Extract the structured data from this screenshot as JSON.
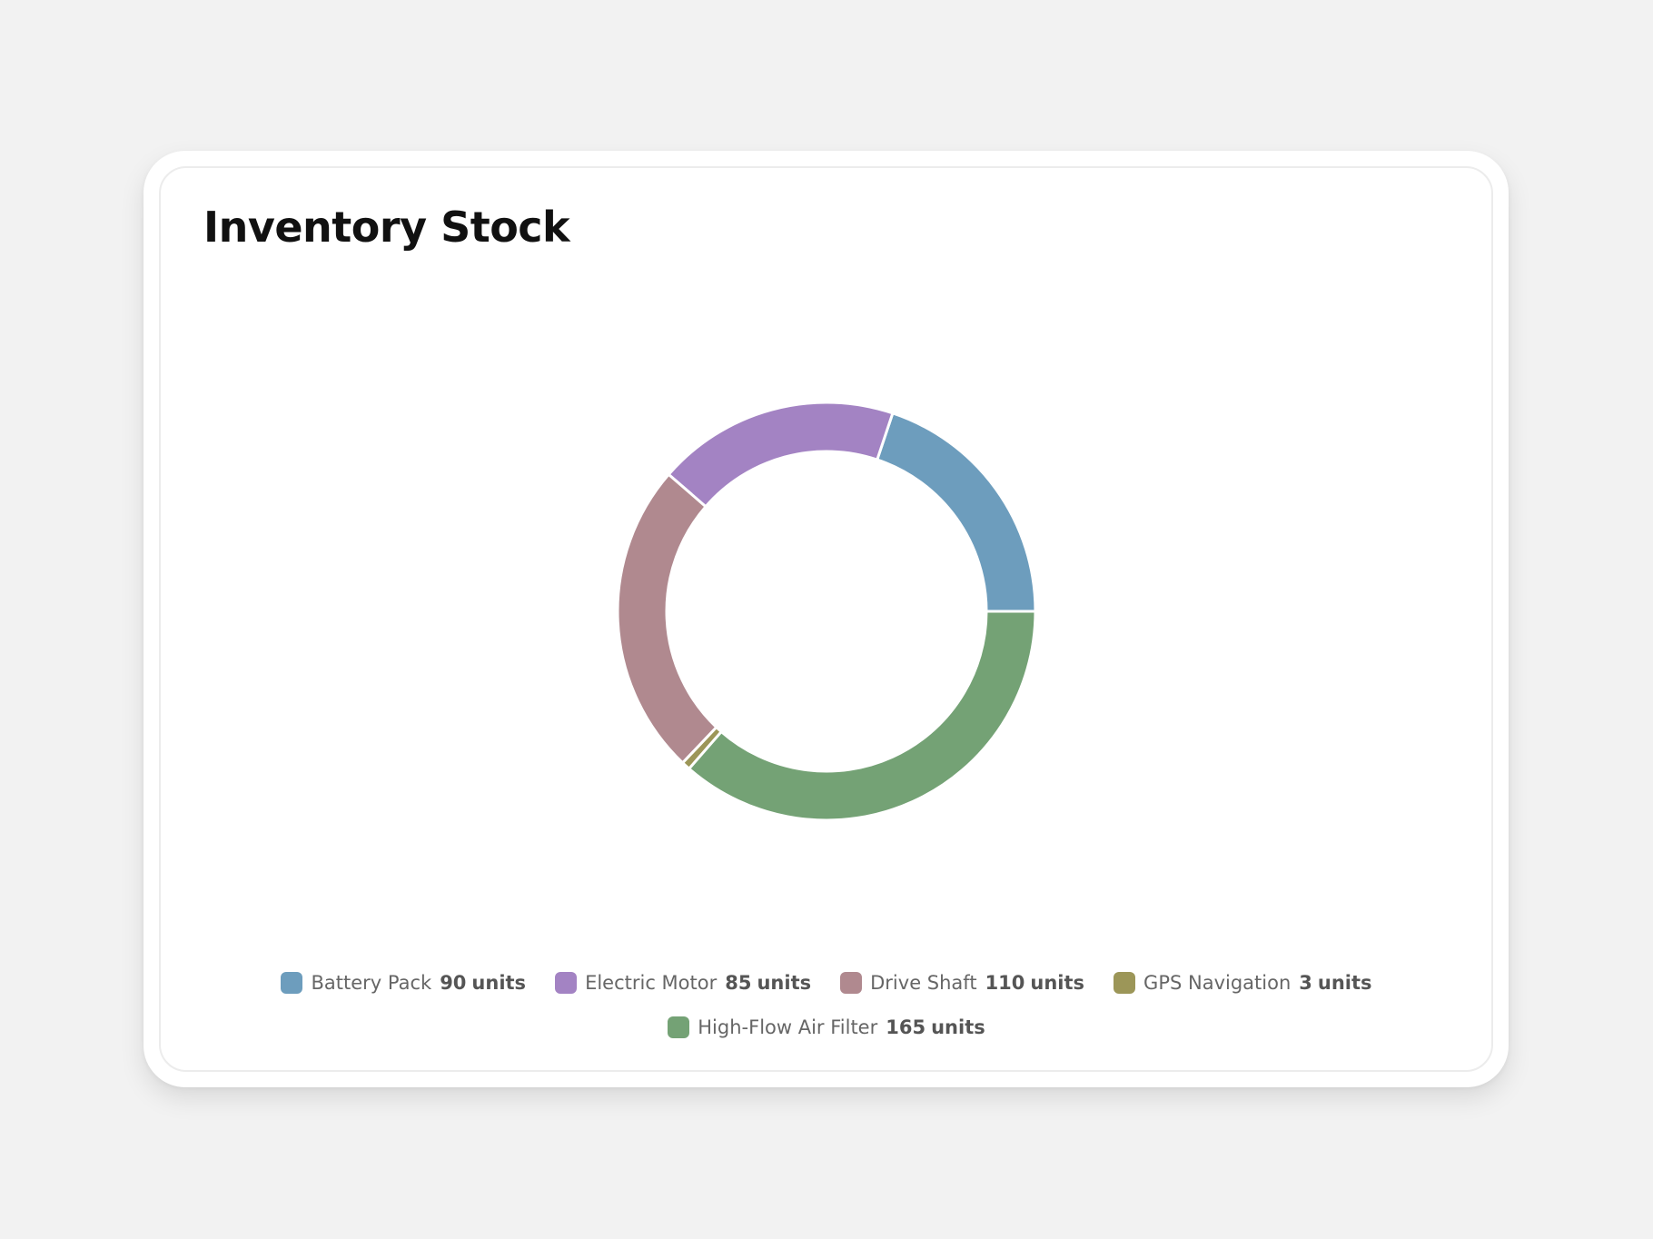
{
  "chart_data": {
    "type": "pie",
    "variant": "donut",
    "title": "Inventory Stock",
    "unit": "units",
    "legend_position": "bottom",
    "slices": [
      {
        "label": "Battery Pack",
        "value": 90,
        "color": "#6d9dbd"
      },
      {
        "label": "Electric Motor",
        "value": 85,
        "color": "#a383c3"
      },
      {
        "label": "Drive Shaft",
        "value": 110,
        "color": "#b0898f"
      },
      {
        "label": "GPS Navigation",
        "value": 3,
        "color": "#9c9658"
      },
      {
        "label": "High-Flow Air Filter",
        "value": 165,
        "color": "#74a275"
      }
    ]
  },
  "colors": {
    "background": "#f2f2f2",
    "card": "#ffffff",
    "title": "#111111",
    "legend_text": "#666666"
  }
}
